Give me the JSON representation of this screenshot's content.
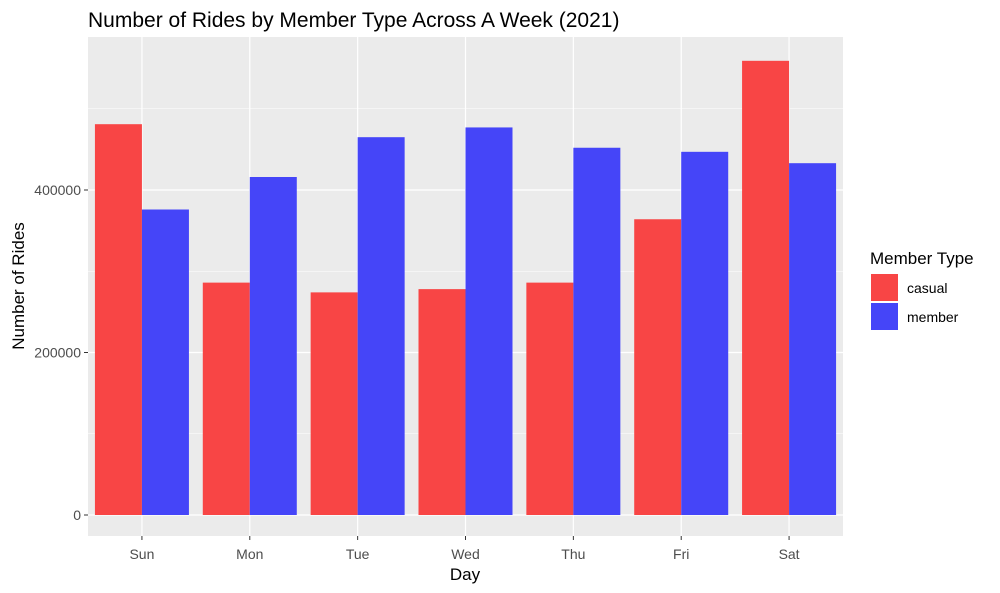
{
  "chart_data": {
    "type": "bar",
    "title": "Number of Rides by Member Type Across A Week (2021)",
    "xlabel": "Day",
    "ylabel": "Number of Rides",
    "categories": [
      "Sun",
      "Mon",
      "Tue",
      "Wed",
      "Thu",
      "Fri",
      "Sat"
    ],
    "series": [
      {
        "name": "casual",
        "color": "#f84545",
        "values": [
          481000,
          286000,
          274000,
          278000,
          286000,
          364000,
          559000
        ]
      },
      {
        "name": "member",
        "color": "#4545f8",
        "values": [
          376000,
          416000,
          465000,
          477000,
          452000,
          447000,
          433000
        ]
      }
    ],
    "ylim": [
      0,
      600000
    ],
    "yticks": [
      0,
      200000,
      400000
    ],
    "ytick_labels": [
      "0",
      "200000",
      "400000"
    ],
    "grid": true,
    "legend": {
      "title": "Member Type",
      "position": "right"
    },
    "panel_background": "#ebebeb"
  }
}
